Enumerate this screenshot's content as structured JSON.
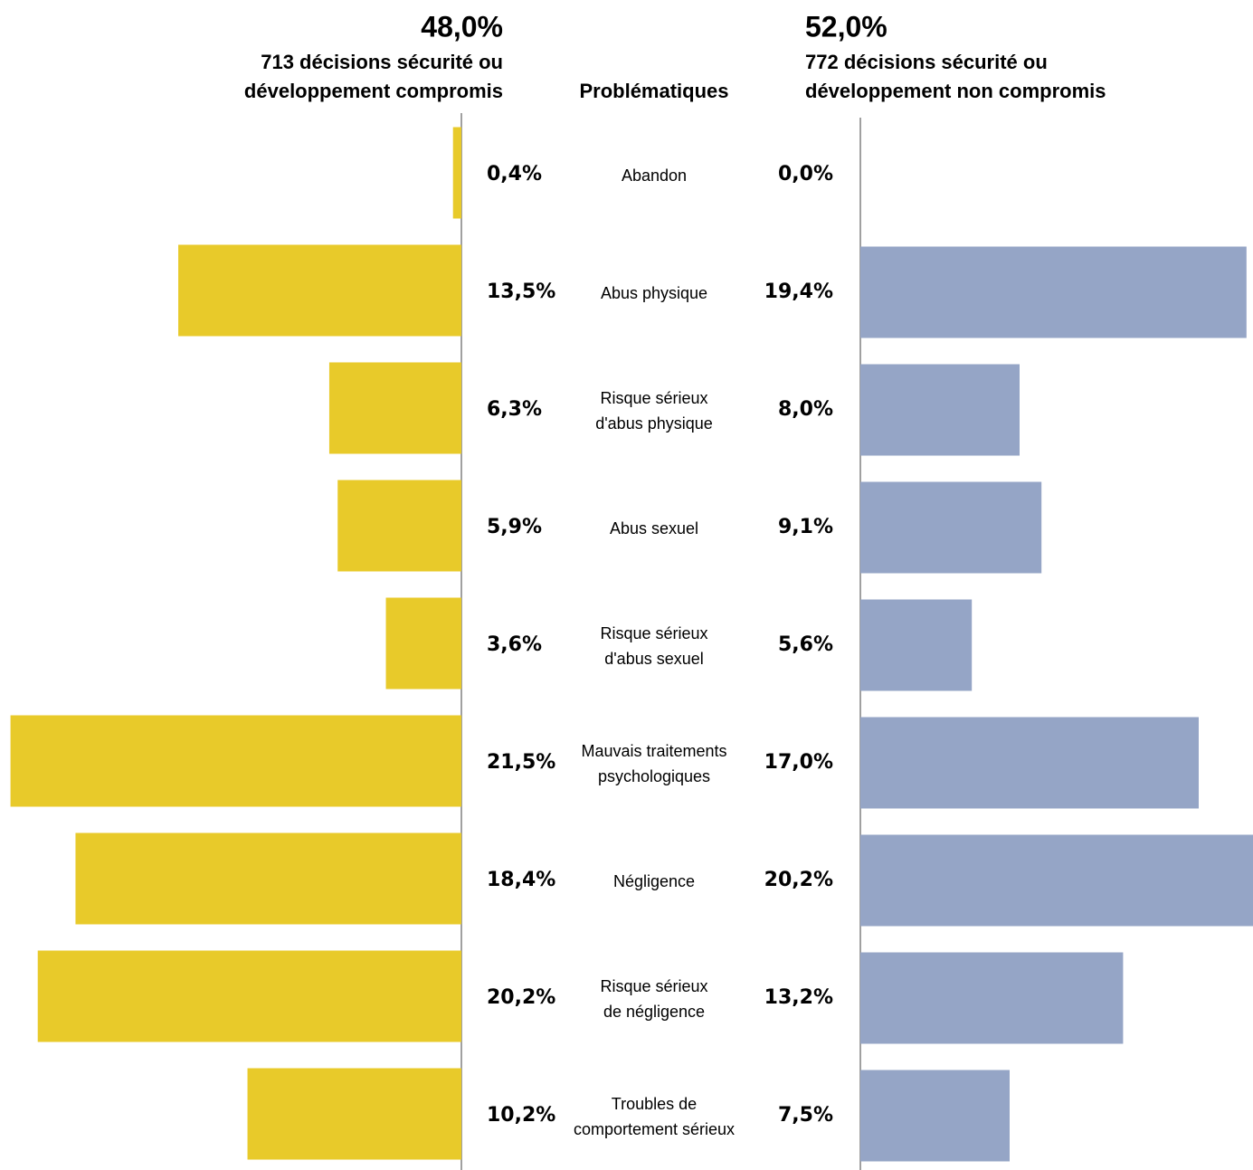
{
  "chart_data": {
    "type": "butterfly-bar",
    "center_label": "Problématiques",
    "categories": [
      "Abandon",
      "Abus physique",
      "Risque sérieux\nd'abus physique",
      "Abus sexuel",
      "Risque sérieux\nd'abus sexuel",
      "Mauvais traitements\npsychologiques",
      "Négligence",
      "Risque sérieux\nde négligence",
      "Troubles de\ncomportement sérieux"
    ],
    "xlim": [
      0,
      22
    ],
    "series": [
      {
        "name": "713 décisions sécurité ou\ndéveloppement compromis",
        "share": 48.0,
        "share_label": "48,0%",
        "color": "#e8ca2a",
        "side": "left",
        "values": [
          0.4,
          13.5,
          6.3,
          5.9,
          3.6,
          21.5,
          18.4,
          20.2,
          10.2
        ],
        "value_labels": [
          "0,4%",
          "13,5%",
          "6,3%",
          "5,9%",
          "3,6%",
          "21,5%",
          "18,4%",
          "20,2%",
          "10,2%"
        ]
      },
      {
        "name": "772 décisions sécurité ou\ndéveloppement non compromis",
        "share": 52.0,
        "share_label": "52,0%",
        "color": "#95a5c6",
        "side": "right",
        "values": [
          0.0,
          19.4,
          8.0,
          9.1,
          5.6,
          17.0,
          20.2,
          13.2,
          7.5
        ],
        "value_labels": [
          "0,0%",
          "19,4%",
          "8,0%",
          "9,1%",
          "5,6%",
          "17,0%",
          "20,2%",
          "13,2%",
          "7,5%"
        ]
      }
    ]
  }
}
